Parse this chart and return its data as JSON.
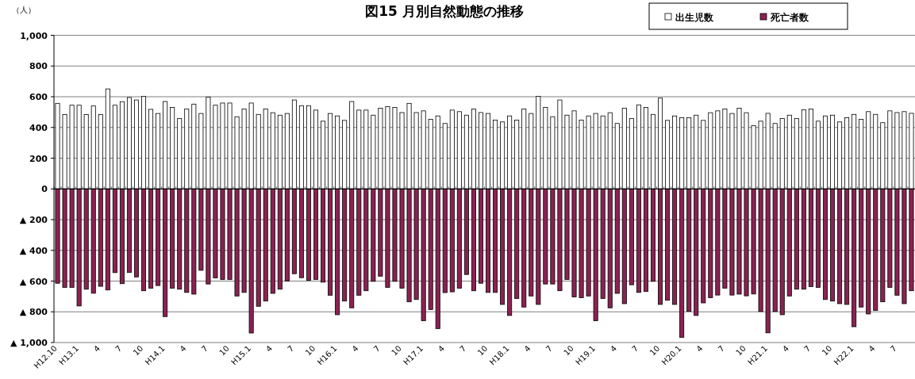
{
  "chart_data": {
    "type": "bar",
    "title": "図15 月別自然動態の推移",
    "ylabel": "（人）",
    "categories": [
      "H12.10",
      null,
      null,
      "H13.1",
      null,
      null,
      "4",
      null,
      null,
      "7",
      null,
      null,
      "10",
      null,
      null,
      "H14.1",
      null,
      null,
      "4",
      null,
      null,
      "7",
      null,
      null,
      "10",
      null,
      null,
      "H15.1",
      null,
      null,
      "4",
      null,
      null,
      "7",
      null,
      null,
      "10",
      null,
      null,
      "H16.1",
      null,
      null,
      "4",
      null,
      null,
      "7",
      null,
      null,
      "10",
      null,
      null,
      "H17.1",
      null,
      null,
      "4",
      null,
      null,
      "7",
      null,
      null,
      "10",
      null,
      null,
      "H18.1",
      null,
      null,
      "4",
      null,
      null,
      "7",
      null,
      null,
      "10",
      null,
      null,
      "H19.1",
      null,
      null,
      "4",
      null,
      null,
      "7",
      null,
      null,
      "10",
      null,
      null,
      "H20.1",
      null,
      null,
      "4",
      null,
      null,
      "7",
      null,
      null,
      "10",
      null,
      null,
      "H21.1",
      null,
      null,
      "4",
      null,
      null,
      "7",
      null,
      null,
      "10",
      null,
      null,
      "H22.1",
      null,
      null,
      "4",
      null,
      null,
      "7",
      null,
      null
    ],
    "series": [
      {
        "name": "出生児数",
        "color": "#ffffff",
        "values": [
          557,
          484,
          545,
          545,
          484,
          540,
          484,
          651,
          545,
          568,
          595,
          579,
          602,
          518,
          491,
          569,
          530,
          458,
          520,
          552,
          491,
          597,
          545,
          559,
          559,
          470,
          520,
          559,
          485,
          520,
          496,
          480,
          491,
          579,
          542,
          542,
          513,
          441,
          491,
          475,
          446,
          569,
          513,
          513,
          480,
          525,
          535,
          530,
          497,
          557,
          497,
          508,
          453,
          475,
          426,
          513,
          503,
          480,
          520,
          497,
          491,
          448,
          436,
          475,
          448,
          520,
          491,
          603,
          530,
          470,
          579,
          480,
          508,
          448,
          475,
          491,
          475,
          496,
          426,
          525,
          458,
          547,
          530,
          485,
          591,
          446,
          475,
          463,
          463,
          480,
          446,
          496,
          508,
          520,
          491,
          525,
          496,
          412,
          441,
          492,
          426,
          458,
          480,
          458,
          515,
          520,
          441,
          475,
          480,
          436,
          463,
          485,
          453,
          503,
          485,
          431,
          508,
          497,
          503,
          492
        ]
      },
      {
        "name": "死亡者数",
        "color": "#8b2252",
        "values": [
          -614,
          -641,
          -641,
          -762,
          -653,
          -679,
          -634,
          -658,
          -545,
          -617,
          -544,
          -573,
          -663,
          -646,
          -629,
          -831,
          -646,
          -653,
          -674,
          -685,
          -530,
          -619,
          -579,
          -590,
          -590,
          -697,
          -674,
          -938,
          -764,
          -730,
          -680,
          -653,
          -600,
          -552,
          -578,
          -595,
          -590,
          -607,
          -692,
          -819,
          -730,
          -774,
          -692,
          -663,
          -602,
          -568,
          -641,
          -602,
          -646,
          -735,
          -720,
          -858,
          -785,
          -909,
          -675,
          -670,
          -646,
          -557,
          -663,
          -614,
          -674,
          -674,
          -752,
          -824,
          -713,
          -769,
          -697,
          -752,
          -619,
          -619,
          -663,
          -590,
          -703,
          -708,
          -697,
          -858,
          -713,
          -774,
          -680,
          -747,
          -624,
          -674,
          -668,
          -602,
          -752,
          -725,
          -752,
          -966,
          -797,
          -824,
          -742,
          -708,
          -691,
          -646,
          -691,
          -685,
          -696,
          -684,
          -798,
          -937,
          -798,
          -819,
          -697,
          -653,
          -653,
          -636,
          -641,
          -720,
          -730,
          -747,
          -752,
          -897,
          -769,
          -814,
          -791,
          -735,
          -641,
          -692,
          -747,
          -663
        ]
      }
    ],
    "ylim": [
      -1000,
      1000
    ],
    "yticks": [
      {
        "value": 1000,
        "label": "1,000"
      },
      800,
      600,
      400,
      200,
      0,
      {
        "value": -200,
        "label": "▲ 200"
      },
      {
        "value": -400,
        "label": "▲ 400"
      },
      {
        "value": -600,
        "label": "▲ 600"
      },
      {
        "value": -800,
        "label": "▲ 800"
      },
      {
        "value": -1000,
        "label": "▲ 1,000"
      }
    ],
    "stacked": true,
    "grid": "y",
    "legend": "top right"
  }
}
